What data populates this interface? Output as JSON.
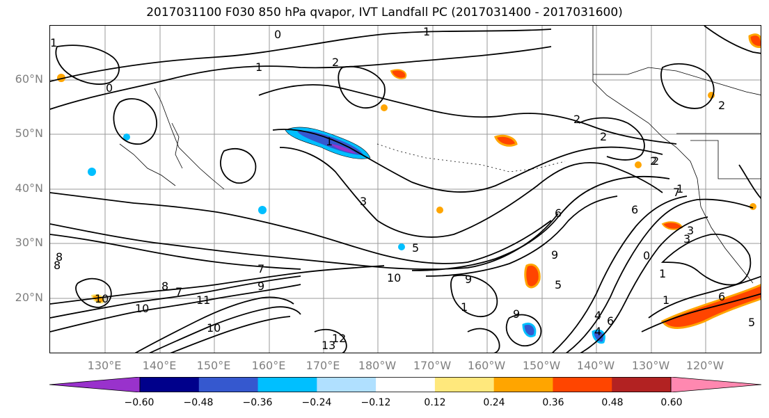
{
  "title": "2017031100 F030 850 hPa qvapor, IVT Landfall PC (2017031400 - 2017031600)",
  "map": {
    "lat_labels": [
      "60°N",
      "50°N",
      "40°N",
      "30°N",
      "20°N"
    ],
    "lon_labels": [
      "130°E",
      "140°E",
      "150°E",
      "160°E",
      "170°E",
      "180°W",
      "170°W",
      "160°W",
      "150°W",
      "140°W",
      "130°W",
      "120°W"
    ],
    "contour_labels": [
      "1",
      "2",
      "0",
      "2",
      "1",
      "1",
      "2",
      "2",
      "1",
      "0",
      "1",
      "3",
      "3",
      "5",
      "8",
      "9",
      "9",
      "7",
      "8",
      "9",
      "10",
      "10",
      "11",
      "10",
      "12",
      "13",
      "5",
      "6",
      "6",
      "4",
      "1",
      "0",
      "1",
      "2",
      "3",
      "6",
      "7",
      "9",
      "10",
      "1",
      "2",
      "5",
      "4",
      "6",
      "8",
      "7"
    ],
    "grid": true
  },
  "colorbar": {
    "tick_labels": [
      "−0.60",
      "−0.48",
      "−0.36",
      "−0.24",
      "−0.12",
      "0.12",
      "0.24",
      "0.36",
      "0.48",
      "0.60"
    ],
    "colors": [
      "#9932CC",
      "#00008B",
      "#3558CF",
      "#00BFFF",
      "#B0E0FF",
      "#FFFFFF",
      "#FFE87C",
      "#FFA500",
      "#FF4500",
      "#B22222",
      "#FF88B0"
    ],
    "extend": "both"
  }
}
